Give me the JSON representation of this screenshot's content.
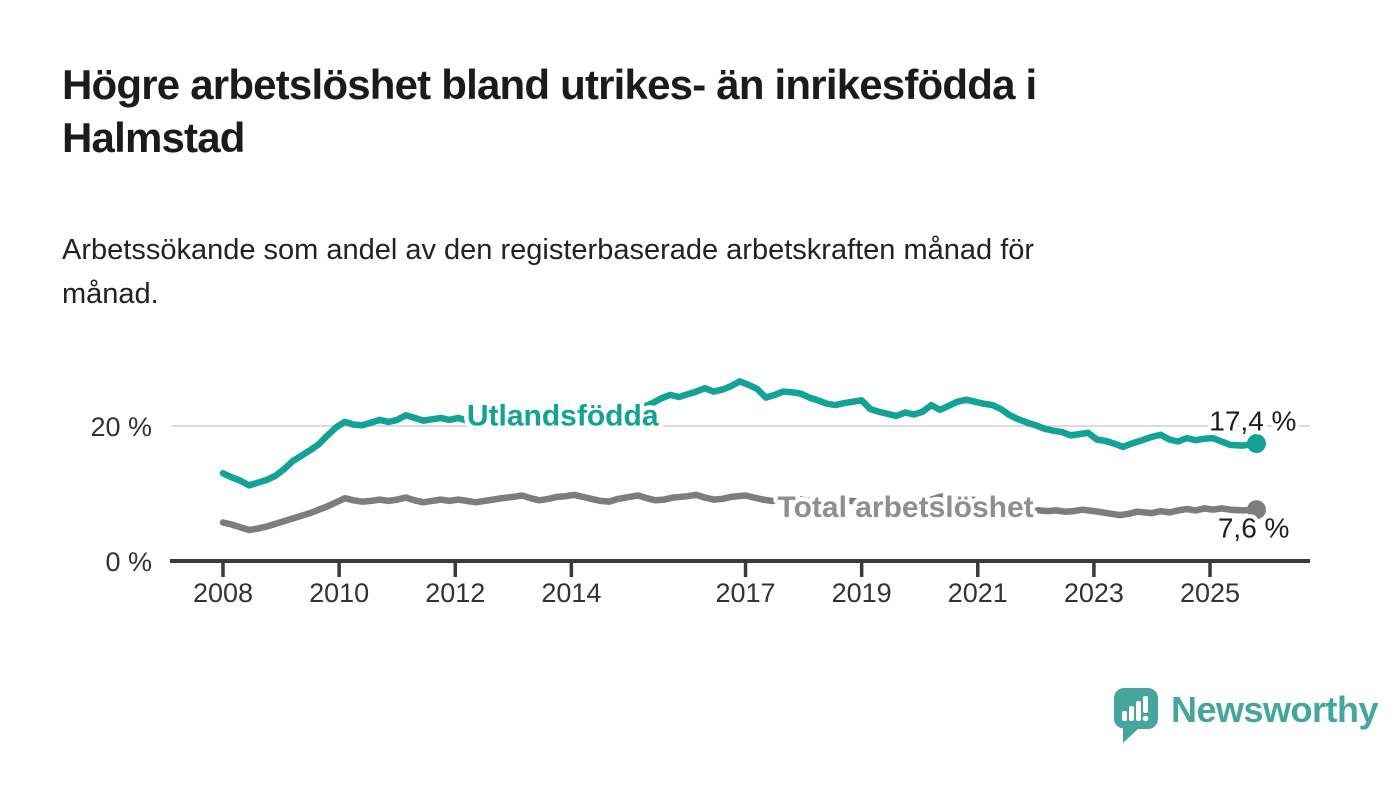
{
  "header": {
    "title": "Högre arbetslöshet bland utrikes- än inrikesfödda i Halmstad",
    "title_lines": [
      "Högre arbetslöshet bland utrikes- än inrikesfödda i",
      "Halmstad"
    ],
    "subtitle": "Arbetssökande som andel av den registerbaserade arbetskraften månad för månad.",
    "subtitle_lines": [
      "Arbetssökande som andel av den registerbaserade arbetskraften månad för",
      "månad."
    ]
  },
  "footer": {
    "brand_name": "Newsworthy"
  },
  "colors": {
    "foreign_born_line": "#12a296",
    "foreign_born_label": "#12a296",
    "total_line": "#7d7d7d",
    "total_label": "#8f8f8f",
    "axis": "#3a3a3a",
    "grid": "#d6d6d6",
    "value_label": "#1f1f1f",
    "logo_teal": "#46a69e",
    "background": "#ffffff"
  },
  "chart_data": {
    "type": "line",
    "title": "Högre arbetslöshet bland utrikes- än inrikesfödda i Halmstad",
    "subtitle": "Arbetssökande som andel av den registerbaserade arbetskraften månad för månad.",
    "xlabel": "",
    "ylabel": "%",
    "xlim": [
      2008,
      2025.8
    ],
    "ylim": [
      0,
      30
    ],
    "legend_position": "inline-labels",
    "grid": "single horizontal gridline at 20 %",
    "x_ticks": [
      {
        "year": 2008,
        "label": "2008"
      },
      {
        "year": 2010,
        "label": "2010"
      },
      {
        "year": 2012,
        "label": "2012"
      },
      {
        "year": 2014,
        "label": "2014"
      },
      {
        "year": 2017,
        "label": "2017"
      },
      {
        "year": 2019,
        "label": "2019"
      },
      {
        "year": 2021,
        "label": "2021"
      },
      {
        "year": 2023,
        "label": "2023"
      },
      {
        "year": 2025,
        "label": "2025"
      }
    ],
    "y_ticks": [
      {
        "pct": 0,
        "label": "0 %"
      },
      {
        "pct": 20,
        "label": "20 %"
      }
    ],
    "series": [
      {
        "name": "Utlandsfödda",
        "color": "#12a296",
        "label_color": "#12a296",
        "end_label": "17,4 %",
        "end_value": 17.4,
        "label_pos": {
          "year": 2012.2,
          "pct": 20.1
        },
        "points": [
          [
            2008.0,
            13.0
          ],
          [
            2008.15,
            12.4
          ],
          [
            2008.3,
            11.9
          ],
          [
            2008.45,
            11.2
          ],
          [
            2008.6,
            11.6
          ],
          [
            2008.75,
            12.0
          ],
          [
            2008.9,
            12.6
          ],
          [
            2009.05,
            13.6
          ],
          [
            2009.2,
            14.8
          ],
          [
            2009.35,
            15.6
          ],
          [
            2009.5,
            16.4
          ],
          [
            2009.65,
            17.3
          ],
          [
            2009.8,
            18.6
          ],
          [
            2009.95,
            19.8
          ],
          [
            2010.1,
            20.6
          ],
          [
            2010.25,
            20.2
          ],
          [
            2010.4,
            20.1
          ],
          [
            2010.55,
            20.5
          ],
          [
            2010.7,
            20.9
          ],
          [
            2010.85,
            20.6
          ],
          [
            2011.0,
            20.9
          ],
          [
            2011.15,
            21.6
          ],
          [
            2011.3,
            21.2
          ],
          [
            2011.45,
            20.8
          ],
          [
            2011.6,
            21.0
          ],
          [
            2011.75,
            21.2
          ],
          [
            2011.9,
            20.9
          ],
          [
            2012.05,
            21.2
          ],
          [
            2012.2,
            20.8
          ],
          [
            2012.35,
            21.0
          ],
          [
            2012.5,
            20.7
          ],
          [
            2012.65,
            21.0
          ],
          [
            2012.8,
            21.2
          ],
          [
            2013.0,
            21.0
          ],
          [
            2013.2,
            21.4
          ],
          [
            2013.4,
            21.1
          ],
          [
            2013.6,
            21.4
          ],
          [
            2013.8,
            21.2
          ],
          [
            2014.0,
            21.5
          ],
          [
            2014.2,
            21.7
          ],
          [
            2014.4,
            21.3
          ],
          [
            2014.6,
            21.1
          ],
          [
            2014.8,
            21.6
          ],
          [
            2015.0,
            22.1
          ],
          [
            2015.2,
            22.7
          ],
          [
            2015.4,
            23.4
          ],
          [
            2015.55,
            24.1
          ],
          [
            2015.7,
            24.6
          ],
          [
            2015.85,
            24.3
          ],
          [
            2016.0,
            24.7
          ],
          [
            2016.15,
            25.1
          ],
          [
            2016.3,
            25.6
          ],
          [
            2016.45,
            25.1
          ],
          [
            2016.6,
            25.4
          ],
          [
            2016.75,
            25.9
          ],
          [
            2016.9,
            26.6
          ],
          [
            2017.05,
            26.1
          ],
          [
            2017.2,
            25.5
          ],
          [
            2017.35,
            24.2
          ],
          [
            2017.5,
            24.6
          ],
          [
            2017.65,
            25.1
          ],
          [
            2017.8,
            25.0
          ],
          [
            2017.95,
            24.8
          ],
          [
            2018.1,
            24.2
          ],
          [
            2018.25,
            23.8
          ],
          [
            2018.4,
            23.3
          ],
          [
            2018.55,
            23.1
          ],
          [
            2018.7,
            23.4
          ],
          [
            2018.85,
            23.6
          ],
          [
            2019.0,
            23.8
          ],
          [
            2019.15,
            22.5
          ],
          [
            2019.3,
            22.1
          ],
          [
            2019.45,
            21.8
          ],
          [
            2019.6,
            21.5
          ],
          [
            2019.75,
            22.0
          ],
          [
            2019.9,
            21.7
          ],
          [
            2020.05,
            22.1
          ],
          [
            2020.2,
            23.1
          ],
          [
            2020.35,
            22.4
          ],
          [
            2020.5,
            23.0
          ],
          [
            2020.65,
            23.6
          ],
          [
            2020.8,
            23.9
          ],
          [
            2020.95,
            23.6
          ],
          [
            2021.1,
            23.3
          ],
          [
            2021.25,
            23.1
          ],
          [
            2021.4,
            22.5
          ],
          [
            2021.55,
            21.6
          ],
          [
            2021.7,
            21.0
          ],
          [
            2021.85,
            20.5
          ],
          [
            2022.0,
            20.1
          ],
          [
            2022.15,
            19.6
          ],
          [
            2022.3,
            19.3
          ],
          [
            2022.45,
            19.1
          ],
          [
            2022.6,
            18.6
          ],
          [
            2022.75,
            18.8
          ],
          [
            2022.9,
            19.0
          ],
          [
            2023.05,
            18.0
          ],
          [
            2023.2,
            17.8
          ],
          [
            2023.35,
            17.4
          ],
          [
            2023.5,
            16.9
          ],
          [
            2023.65,
            17.4
          ],
          [
            2023.8,
            17.8
          ],
          [
            2024.0,
            18.4
          ],
          [
            2024.15,
            18.7
          ],
          [
            2024.3,
            18.0
          ],
          [
            2024.45,
            17.7
          ],
          [
            2024.6,
            18.2
          ],
          [
            2024.75,
            17.9
          ],
          [
            2024.9,
            18.1
          ],
          [
            2025.05,
            18.2
          ],
          [
            2025.2,
            17.7
          ],
          [
            2025.35,
            17.2
          ],
          [
            2025.55,
            17.1
          ],
          [
            2025.8,
            17.4
          ]
        ]
      },
      {
        "name": "Total arbetslöshet",
        "color": "#7d7d7d",
        "label_color": "#8f8f8f",
        "end_label": "7,6 %",
        "end_value": 7.6,
        "label_pos": {
          "year": 2017.55,
          "pct": 6.5
        },
        "points": [
          [
            2008.0,
            5.7
          ],
          [
            2008.15,
            5.4
          ],
          [
            2008.3,
            5.0
          ],
          [
            2008.45,
            4.6
          ],
          [
            2008.6,
            4.8
          ],
          [
            2008.75,
            5.1
          ],
          [
            2008.9,
            5.5
          ],
          [
            2009.05,
            5.9
          ],
          [
            2009.2,
            6.3
          ],
          [
            2009.35,
            6.7
          ],
          [
            2009.5,
            7.1
          ],
          [
            2009.65,
            7.6
          ],
          [
            2009.8,
            8.1
          ],
          [
            2009.95,
            8.7
          ],
          [
            2010.1,
            9.3
          ],
          [
            2010.25,
            9.0
          ],
          [
            2010.4,
            8.8
          ],
          [
            2010.55,
            8.9
          ],
          [
            2010.7,
            9.1
          ],
          [
            2010.85,
            8.9
          ],
          [
            2011.0,
            9.1
          ],
          [
            2011.15,
            9.4
          ],
          [
            2011.3,
            9.0
          ],
          [
            2011.45,
            8.7
          ],
          [
            2011.6,
            8.9
          ],
          [
            2011.75,
            9.1
          ],
          [
            2011.9,
            8.9
          ],
          [
            2012.05,
            9.1
          ],
          [
            2012.2,
            8.9
          ],
          [
            2012.35,
            8.7
          ],
          [
            2012.5,
            8.9
          ],
          [
            2012.65,
            9.1
          ],
          [
            2012.8,
            9.3
          ],
          [
            2013.0,
            9.5
          ],
          [
            2013.15,
            9.7
          ],
          [
            2013.3,
            9.3
          ],
          [
            2013.45,
            9.0
          ],
          [
            2013.6,
            9.2
          ],
          [
            2013.75,
            9.5
          ],
          [
            2013.9,
            9.6
          ],
          [
            2014.05,
            9.8
          ],
          [
            2014.2,
            9.5
          ],
          [
            2014.35,
            9.2
          ],
          [
            2014.5,
            8.9
          ],
          [
            2014.65,
            8.8
          ],
          [
            2014.8,
            9.2
          ],
          [
            2015.0,
            9.5
          ],
          [
            2015.15,
            9.7
          ],
          [
            2015.3,
            9.3
          ],
          [
            2015.45,
            9.0
          ],
          [
            2015.6,
            9.1
          ],
          [
            2015.75,
            9.4
          ],
          [
            2016.0,
            9.6
          ],
          [
            2016.15,
            9.8
          ],
          [
            2016.3,
            9.4
          ],
          [
            2016.45,
            9.1
          ],
          [
            2016.6,
            9.2
          ],
          [
            2016.75,
            9.5
          ],
          [
            2017.0,
            9.7
          ],
          [
            2017.15,
            9.4
          ],
          [
            2017.3,
            9.1
          ],
          [
            2017.45,
            8.9
          ],
          [
            2017.6,
            9.0
          ],
          [
            2017.75,
            9.3
          ],
          [
            2017.9,
            9.2
          ],
          [
            2018.05,
            9.0
          ],
          [
            2018.2,
            8.8
          ],
          [
            2018.35,
            8.6
          ],
          [
            2018.5,
            8.5
          ],
          [
            2018.65,
            8.7
          ],
          [
            2018.8,
            8.9
          ],
          [
            2019.0,
            8.8
          ],
          [
            2019.15,
            8.6
          ],
          [
            2019.3,
            8.4
          ],
          [
            2019.45,
            8.3
          ],
          [
            2019.6,
            8.5
          ],
          [
            2019.75,
            8.7
          ],
          [
            2019.9,
            8.6
          ],
          [
            2020.05,
            8.7
          ],
          [
            2020.2,
            9.1
          ],
          [
            2020.35,
            9.5
          ],
          [
            2020.5,
            9.7
          ],
          [
            2020.65,
            9.4
          ],
          [
            2020.8,
            9.2
          ],
          [
            2021.0,
            9.0
          ],
          [
            2021.15,
            8.8
          ],
          [
            2021.3,
            8.5
          ],
          [
            2021.45,
            8.2
          ],
          [
            2021.6,
            8.0
          ],
          [
            2021.75,
            7.8
          ],
          [
            2021.9,
            7.6
          ],
          [
            2022.05,
            7.5
          ],
          [
            2022.2,
            7.4
          ],
          [
            2022.35,
            7.5
          ],
          [
            2022.5,
            7.3
          ],
          [
            2022.65,
            7.4
          ],
          [
            2022.8,
            7.6
          ],
          [
            2023.0,
            7.4
          ],
          [
            2023.15,
            7.2
          ],
          [
            2023.3,
            7.0
          ],
          [
            2023.45,
            6.8
          ],
          [
            2023.6,
            7.0
          ],
          [
            2023.75,
            7.3
          ],
          [
            2024.0,
            7.1
          ],
          [
            2024.15,
            7.4
          ],
          [
            2024.3,
            7.2
          ],
          [
            2024.45,
            7.5
          ],
          [
            2024.6,
            7.7
          ],
          [
            2024.75,
            7.5
          ],
          [
            2024.9,
            7.8
          ],
          [
            2025.05,
            7.6
          ],
          [
            2025.2,
            7.8
          ],
          [
            2025.35,
            7.6
          ],
          [
            2025.55,
            7.5
          ],
          [
            2025.8,
            7.6
          ]
        ]
      }
    ]
  }
}
